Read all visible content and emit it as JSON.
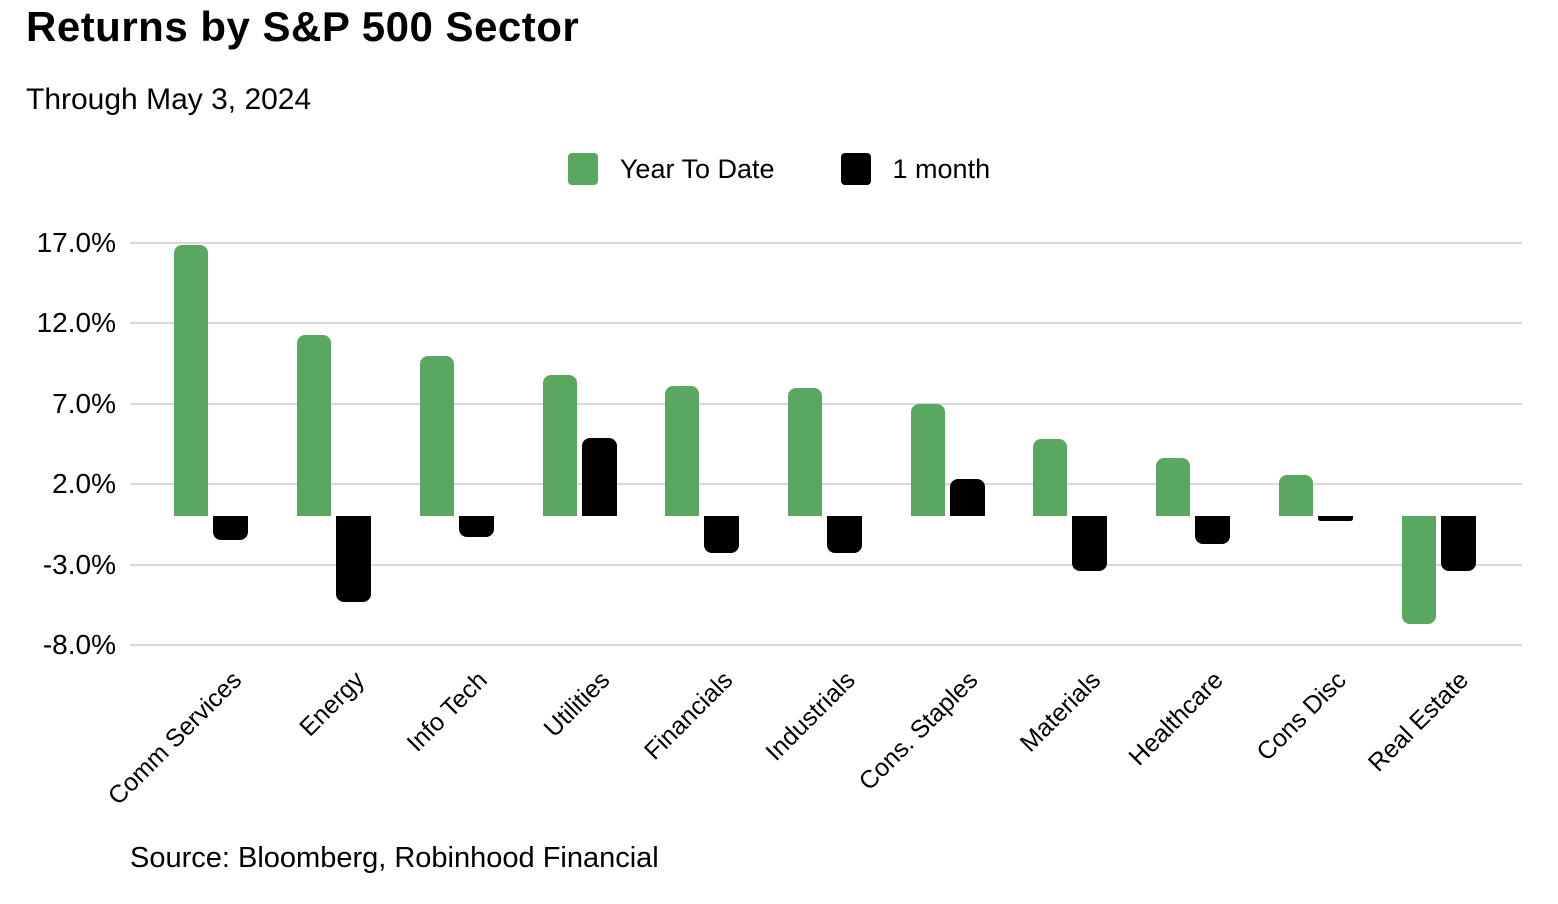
{
  "chart_data": {
    "type": "bar",
    "title": "Returns by S&P 500 Sector",
    "subtitle": "Through May 3, 2024",
    "source": "Source: Bloomberg, Robinhood Financial",
    "categories": [
      "Comm Services",
      "Energy",
      "Info Tech",
      "Utilities",
      "Financials",
      "Industrials",
      "Cons. Staples",
      "Materials",
      "Healthcare",
      "Cons Disc",
      "Real Estate"
    ],
    "series": [
      {
        "name": "Year To Date",
        "color": "#5aa85f",
        "values": [
          16.9,
          11.3,
          10.0,
          8.8,
          8.1,
          8.0,
          7.0,
          4.8,
          3.6,
          2.6,
          -6.7
        ]
      },
      {
        "name": "1 month",
        "color": "#000000",
        "values": [
          -1.5,
          -5.3,
          -1.3,
          4.9,
          -2.3,
          -2.3,
          2.3,
          -3.4,
          -1.7,
          -0.3,
          -3.4
        ]
      }
    ],
    "y_ticks": [
      {
        "value": 17,
        "label": "17.0%"
      },
      {
        "value": 12,
        "label": "12.0%"
      },
      {
        "value": 7,
        "label": "7.0%"
      },
      {
        "value": 2,
        "label": "2.0%"
      },
      {
        "value": -3,
        "label": "-3.0%"
      },
      {
        "value": -8,
        "label": "-8.0%"
      }
    ],
    "ylim": [
      -8,
      17
    ],
    "unit": "%",
    "grid": "horizontal",
    "gridline_color": "#d9d9d9",
    "legend_position": "top-center"
  }
}
